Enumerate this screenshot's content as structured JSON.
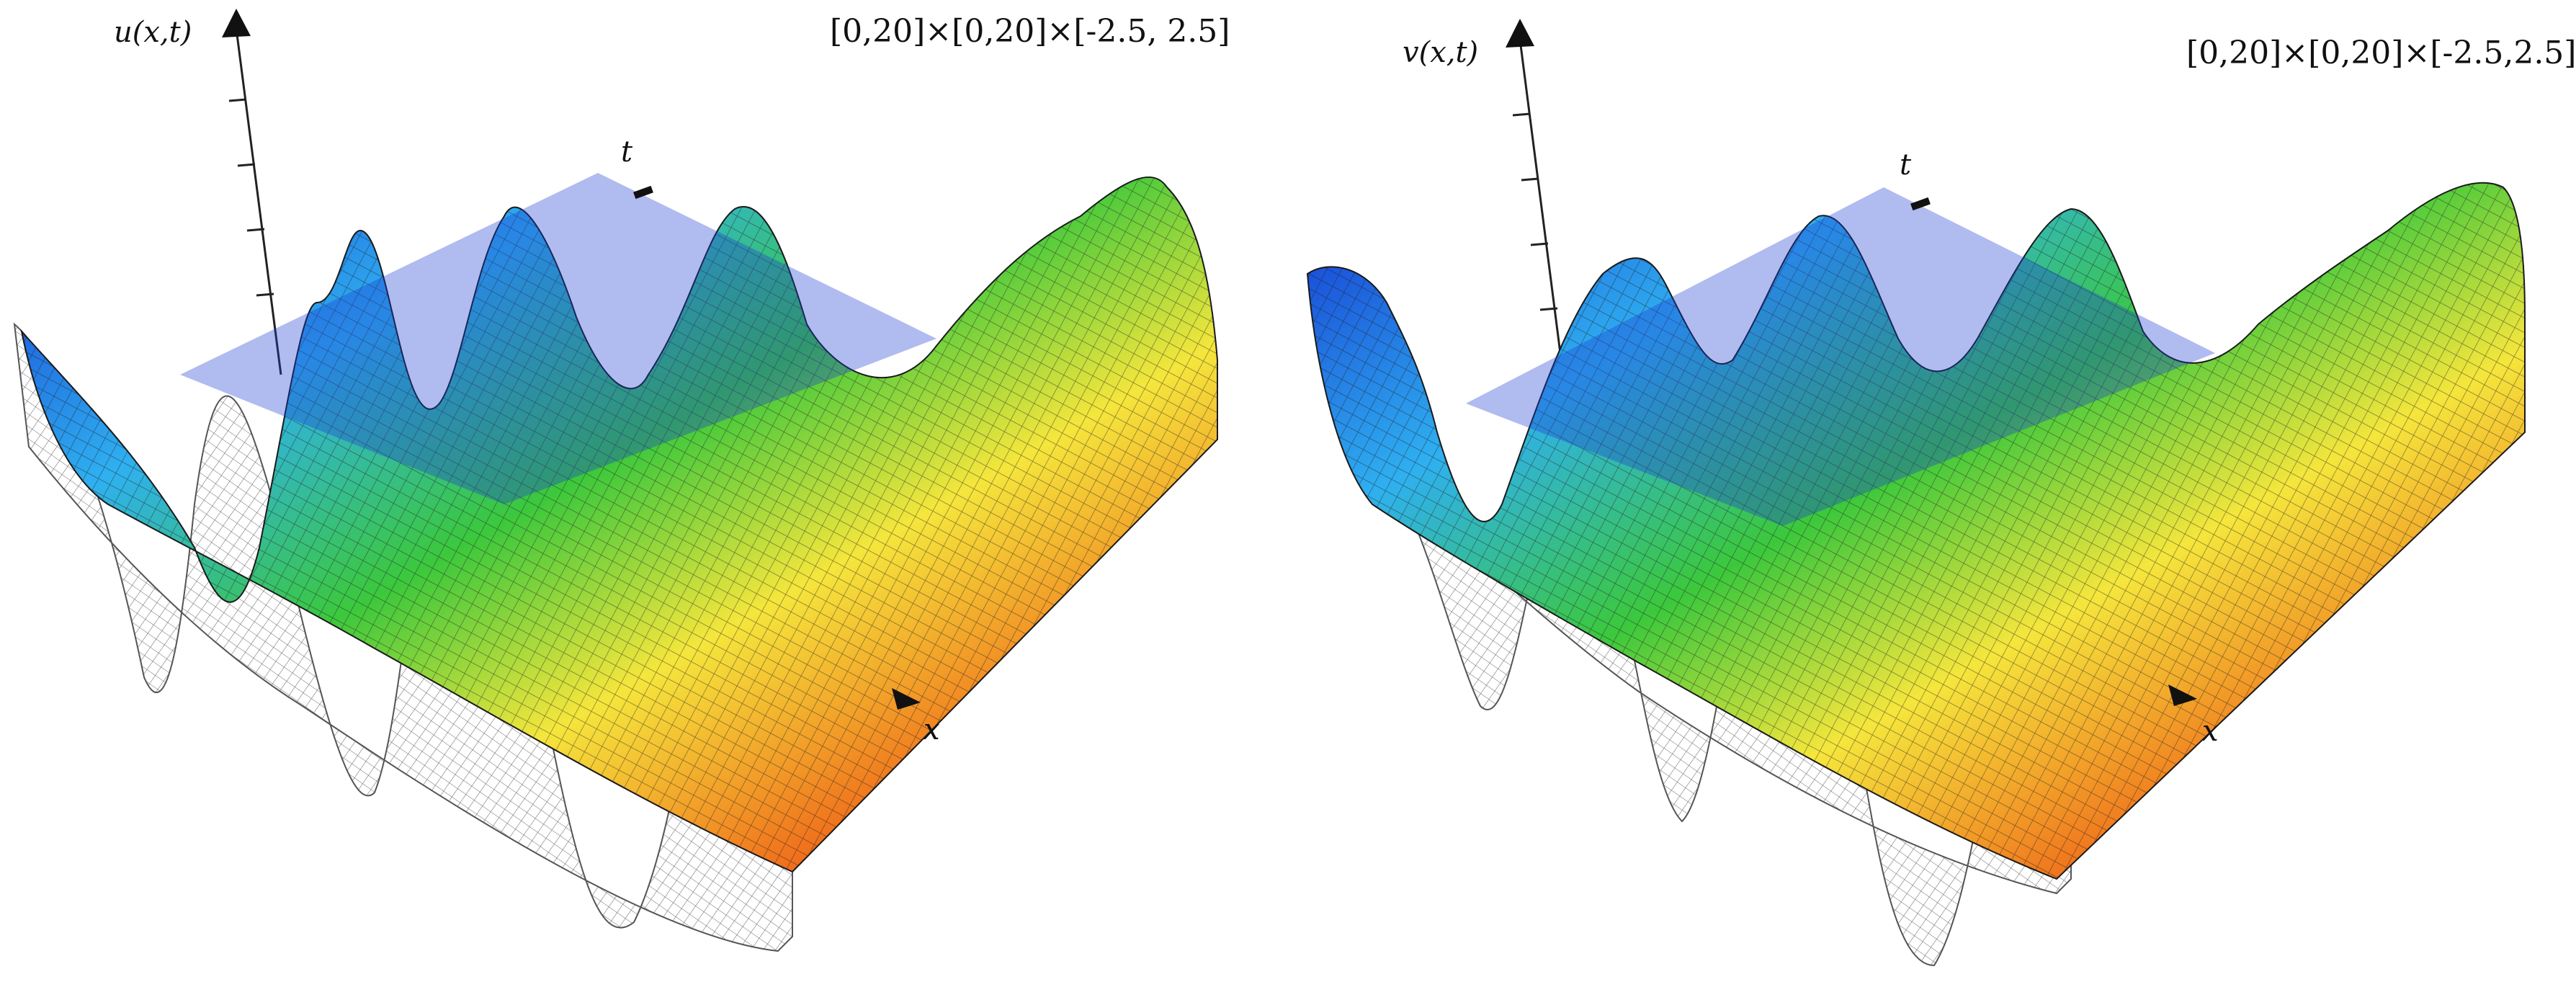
{
  "panels": [
    {
      "id": "left",
      "vertical_axis_label": "u(x,t)",
      "domain_label": "[0,20]×[0,20]×[-2.5, 2.5]",
      "t_label": "t",
      "x_label": "x"
    },
    {
      "id": "right",
      "vertical_axis_label": "v(x,t)",
      "domain_label": "[0,20]×[0,20]×[-2.5,2.5]",
      "t_label": "t",
      "x_label": "x"
    }
  ],
  "colors": {
    "surface_low": "#1432d2",
    "surface_cyan": "#2fd0f0",
    "surface_green": "#3cc83c",
    "surface_yellow": "#f5e63c",
    "surface_orange": "#f0781e",
    "surface_high": "#e61414",
    "mesh_line": "#1a1a1a",
    "wireframe": "#444444"
  }
}
